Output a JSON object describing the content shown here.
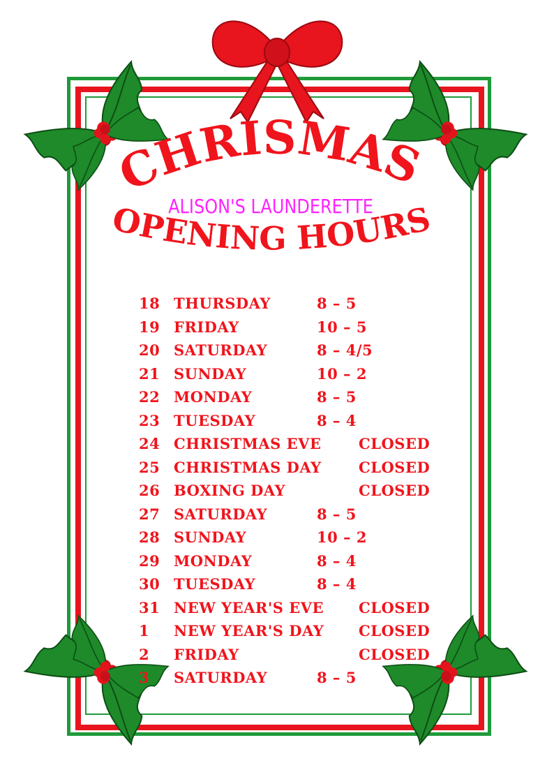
{
  "title": "CHRISMAS",
  "subtitle": "ALISON'S LAUNDERETTE",
  "heading": "OPENING HOURS",
  "colors": {
    "red": "#f0141c",
    "green": "#1f9a3a",
    "magenta": "#ff22ff"
  },
  "schedule": [
    {
      "date": "18",
      "day": "THURSDAY",
      "hours": "8 – 5"
    },
    {
      "date": "19",
      "day": "FRIDAY",
      "hours": "10 – 5"
    },
    {
      "date": "20",
      "day": "SATURDAY",
      "hours": "8 – 4/5"
    },
    {
      "date": "21",
      "day": "SUNDAY",
      "hours": "10 – 2"
    },
    {
      "date": "22",
      "day": "MONDAY",
      "hours": "8 – 5"
    },
    {
      "date": "23",
      "day": "TUESDAY",
      "hours": "8 – 4"
    },
    {
      "date": "24",
      "day": "CHRISTMAS EVE",
      "hours": "CLOSED"
    },
    {
      "date": "25",
      "day": "CHRISTMAS DAY",
      "hours": "CLOSED"
    },
    {
      "date": "26",
      "day": "BOXING DAY",
      "hours": "CLOSED"
    },
    {
      "date": "27",
      "day": "SATURDAY",
      "hours": "8 – 5"
    },
    {
      "date": "28",
      "day": "SUNDAY",
      "hours": "10 – 2"
    },
    {
      "date": "29",
      "day": "MONDAY",
      "hours": "8 – 4"
    },
    {
      "date": "30",
      "day": "TUESDAY",
      "hours": "8 – 4"
    },
    {
      "date": "31",
      "day": "NEW YEAR'S EVE",
      "hours": "CLOSED"
    },
    {
      "date": "1",
      "day": "NEW YEAR'S DAY",
      "hours": "CLOSED"
    },
    {
      "date": "2",
      "day": "FRIDAY",
      "hours": "CLOSED"
    },
    {
      "date": "3",
      "day": "SATURDAY",
      "hours": "8 – 5"
    }
  ]
}
